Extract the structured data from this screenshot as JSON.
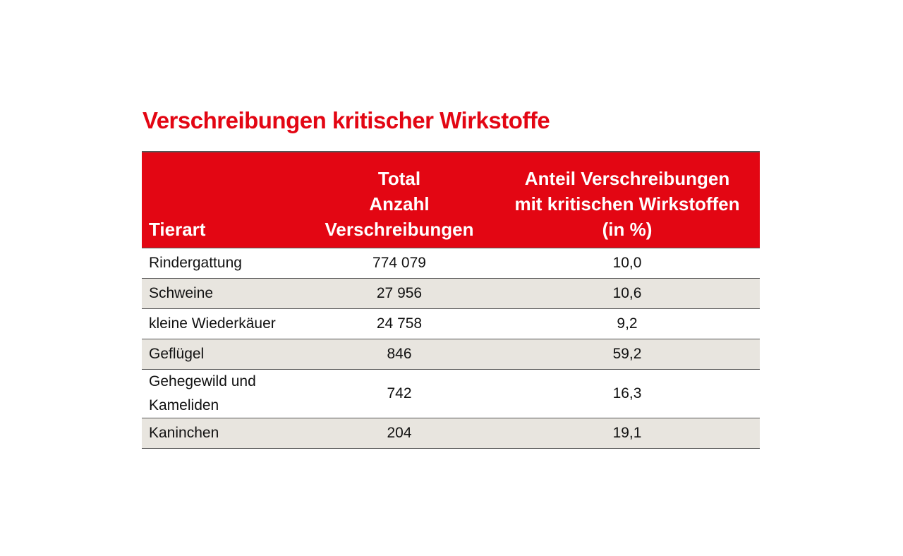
{
  "chart_data": {
    "type": "table",
    "title": "Verschreibungen kritischer Wirkstoffe",
    "columns": [
      "Tierart",
      "Total Anzahl Verschreibungen",
      "Anteil Verschreibungen mit kritischen Wirkstoffen (in %)"
    ],
    "header_lines": {
      "c1": [
        "Tierart"
      ],
      "c2": [
        "Total",
        "Anzahl",
        "Verschreibungen"
      ],
      "c3": [
        "Anteil Verschreibungen",
        "mit kritischen Wirkstoffen",
        "(in %)"
      ]
    },
    "rows": [
      {
        "tierart": "Rindergattung",
        "total": "774 079",
        "anteil": "10,0"
      },
      {
        "tierart": "Schweine",
        "total": "27 956",
        "anteil": "10,6"
      },
      {
        "tierart": "kleine Wiederkäuer",
        "total": "24 758",
        "anteil": "9,2"
      },
      {
        "tierart": "Geflügel",
        "total": "846",
        "anteil": "59,2"
      },
      {
        "tierart": "Gehegewild und Kameliden",
        "total": "742",
        "anteil": "16,3"
      },
      {
        "tierart": "Kaninchen",
        "total": "204",
        "anteil": "19,1"
      }
    ],
    "colors": {
      "accent": "#e30613",
      "alt_row": "#e8e5df"
    }
  }
}
